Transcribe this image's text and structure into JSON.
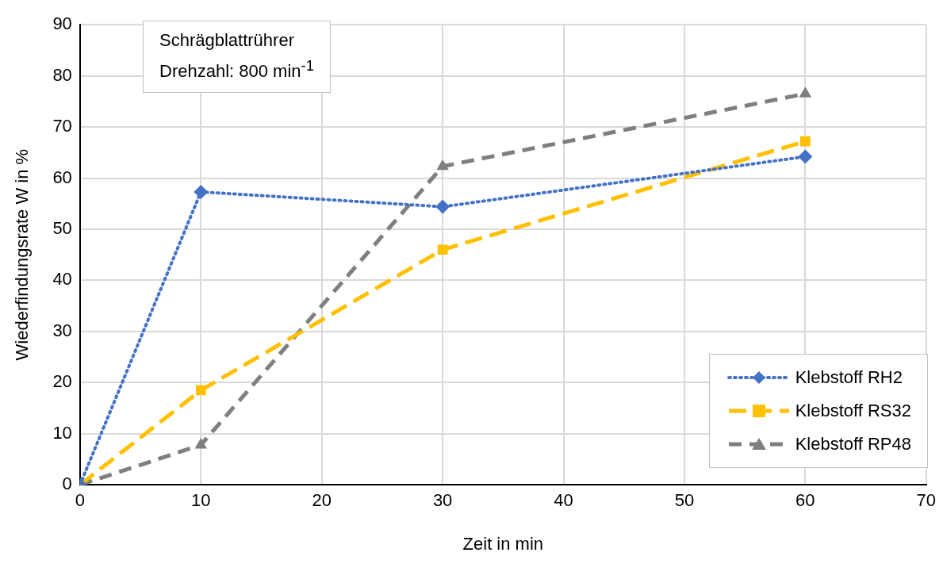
{
  "chart_data": {
    "type": "line",
    "xlabel": "Zeit in min",
    "ylabel": "Wiederfindungsrate W in %",
    "annotations": [
      "Schrägblattrührer",
      "Drehzahl: 800 min$^{-1}$"
    ],
    "x": [
      0,
      10,
      30,
      60
    ],
    "series": [
      {
        "name": "Klebstoff RH2",
        "color": "#4472c4",
        "values": [
          0,
          57.3,
          54.4,
          64.2
        ],
        "marker": "diamond",
        "line_style": "dotted"
      },
      {
        "name": "Klebstoff RS32",
        "color": "#ffc000",
        "values": [
          0,
          18.5,
          46,
          67.2
        ],
        "marker": "square",
        "line_style": "dashed"
      },
      {
        "name": "Klebstoff RP48",
        "color": "#7f7f7f",
        "values": [
          0,
          7.8,
          62.3,
          76.5
        ],
        "marker": "triangle",
        "line_style": "dashed"
      }
    ],
    "xlim": [
      0,
      70
    ],
    "xticks": [
      0,
      10,
      20,
      30,
      40,
      50,
      60,
      70
    ],
    "ylim": [
      0,
      90
    ],
    "yticks": [
      0,
      10,
      20,
      30,
      40,
      50,
      60,
      70,
      80,
      90
    ],
    "grid": true,
    "legend": "bottom right"
  }
}
